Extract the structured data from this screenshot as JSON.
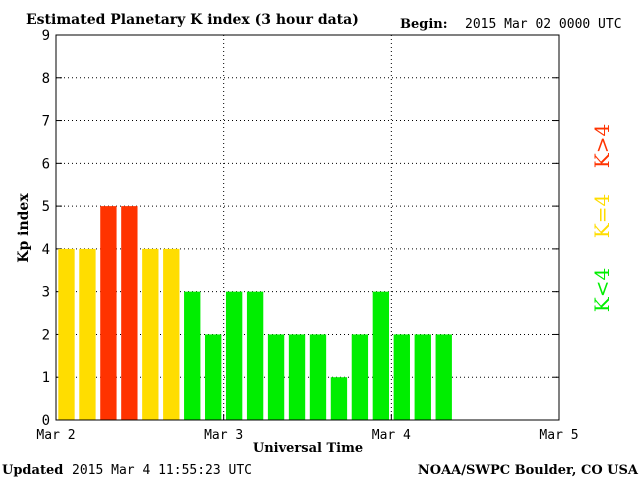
{
  "title": "Estimated Planetary K index (3 hour data)",
  "begin_label": "Begin:",
  "begin_value": "2015 Mar 02 0000 UTC",
  "updated_label": "Updated",
  "updated_value": "2015 Mar  4 11:55:23 UTC",
  "source": "NOAA/SWPC Boulder, CO USA",
  "legend": [
    {
      "label": "K>4",
      "color": "#ff3300"
    },
    {
      "label": "K=4",
      "color": "#ffdd00"
    },
    {
      "label": "K<4",
      "color": "#00ee00"
    }
  ],
  "colors": {
    "above4": "#ff3300",
    "equal4": "#ffdd00",
    "below4": "#00ee00"
  },
  "chart_data": {
    "type": "bar",
    "title": "Estimated Planetary K index (3 hour data)",
    "xlabel": "Universal Time",
    "ylabel": "Kp index",
    "ylim": [
      0,
      9
    ],
    "xlim": [
      0,
      24
    ],
    "yticks": [
      0,
      1,
      2,
      3,
      4,
      5,
      6,
      7,
      8,
      9
    ],
    "xticks": [
      {
        "slot": 0,
        "label": "Mar 2"
      },
      {
        "slot": 8,
        "label": "Mar 3"
      },
      {
        "slot": 16,
        "label": "Mar 4"
      },
      {
        "slot": 24,
        "label": "Mar 5"
      }
    ],
    "grid": true,
    "values": [
      4,
      4,
      5,
      5,
      4,
      4,
      3,
      2,
      3,
      3,
      2,
      2,
      2,
      1,
      2,
      3,
      2,
      2,
      2
    ]
  }
}
